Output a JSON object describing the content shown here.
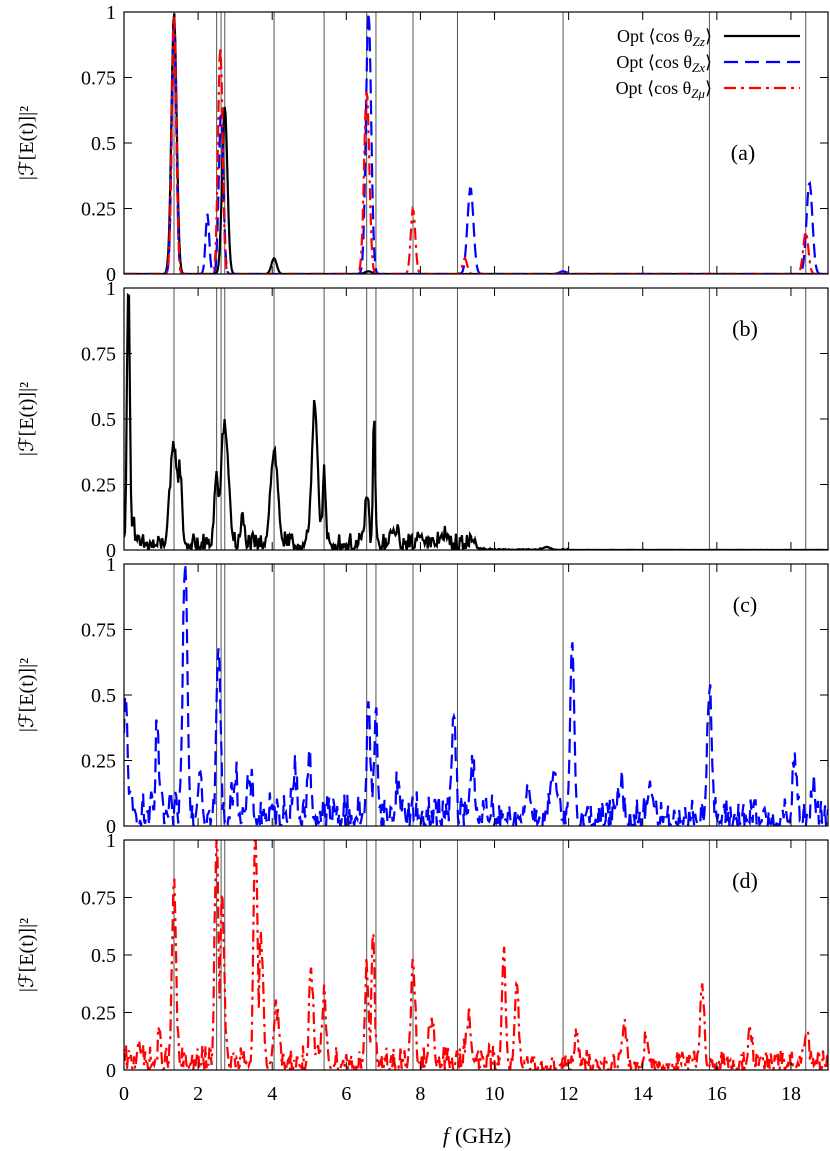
{
  "chart_data": {
    "type": "line",
    "xlabel": "f (GHz)",
    "xlabel_var": "f",
    "xlabel_unit": "(GHz)",
    "xlim": [
      0,
      19
    ],
    "x_ticks": [
      "0",
      "2",
      "4",
      "6",
      "8",
      "10",
      "12",
      "14",
      "16",
      "18"
    ],
    "y_ticks": [
      "0",
      "0.25",
      "0.5",
      "0.75",
      "1"
    ],
    "ylim": [
      0,
      1
    ],
    "ylabel": "|ℱ[E(t)]|²",
    "reference_lines_ghz": [
      1.35,
      2.5,
      2.62,
      2.72,
      4.05,
      5.4,
      6.55,
      6.8,
      7.8,
      9.0,
      11.85,
      15.8,
      18.4
    ],
    "legend": {
      "placement": "top-right",
      "entries": [
        {
          "label": "Opt ⟨cos θ",
          "sub": "Zz",
          "tail": "⟩",
          "color": "#000000",
          "dash": "solid"
        },
        {
          "label": "Opt ⟨cos θ",
          "sub": "Zx",
          "tail": "⟩",
          "color": "#0000ff",
          "dash": "dash"
        },
        {
          "label": "Opt ⟨cos θ",
          "sub": "Zμ",
          "tail": "⟩",
          "color": "#ff0000",
          "dash": "dashdot"
        }
      ]
    },
    "panels": [
      {
        "label": "(a)",
        "series": [
          {
            "color": "#000000",
            "dash": "solid",
            "peaks": [
              [
                1.35,
                1.0,
                0.07
              ],
              [
                2.72,
                0.64,
                0.07
              ],
              [
                4.05,
                0.06,
                0.07
              ],
              [
                6.6,
                0.01,
                0.1
              ]
            ]
          },
          {
            "color": "#0000ff",
            "dash": "dash",
            "peaks": [
              [
                1.35,
                0.98,
                0.06
              ],
              [
                2.25,
                0.23,
                0.05
              ],
              [
                2.62,
                0.62,
                0.06
              ],
              [
                6.6,
                1.0,
                0.07
              ],
              [
                9.35,
                0.33,
                0.08
              ],
              [
                18.5,
                0.35,
                0.08
              ],
              [
                11.85,
                0.01,
                0.1
              ]
            ]
          },
          {
            "color": "#ff0000",
            "dash": "dashdot",
            "peaks": [
              [
                1.35,
                0.99,
                0.06
              ],
              [
                2.6,
                0.87,
                0.06
              ],
              [
                6.55,
                0.7,
                0.07
              ],
              [
                7.8,
                0.25,
                0.06
              ],
              [
                9.2,
                0.06,
                0.06
              ],
              [
                18.4,
                0.16,
                0.07
              ]
            ]
          }
        ]
      },
      {
        "label": "(b)",
        "series": [
          {
            "color": "#000000",
            "dash": "solid",
            "peaks": [
              [
                0.12,
                1.0,
                0.04
              ],
              [
                0.25,
                0.12,
                0.03
              ],
              [
                1.35,
                0.38,
                0.1
              ],
              [
                1.5,
                0.3,
                0.06
              ],
              [
                2.5,
                0.27,
                0.06
              ],
              [
                2.72,
                0.46,
                0.1
              ],
              [
                3.2,
                0.1,
                0.05
              ],
              [
                4.05,
                0.36,
                0.1
              ],
              [
                5.15,
                0.53,
                0.08
              ],
              [
                5.4,
                0.29,
                0.04
              ],
              [
                6.55,
                0.2,
                0.05
              ],
              [
                6.75,
                0.5,
                0.03
              ],
              [
                7.3,
                0.06,
                0.08
              ],
              [
                8.0,
                0.05,
                0.08
              ],
              [
                8.6,
                0.04,
                0.1
              ],
              [
                9.4,
                0.02,
                0.1
              ],
              [
                11.4,
                0.01,
                0.1
              ]
            ],
            "noise": 0.03
          }
        ]
      },
      {
        "label": "(c)",
        "series": [
          {
            "color": "#0000ff",
            "dash": "dash",
            "peaks": [
              [
                0.05,
                0.45,
                0.05
              ],
              [
                0.9,
                0.38,
                0.04
              ],
              [
                1.65,
                1.0,
                0.06
              ],
              [
                2.05,
                0.2,
                0.05
              ],
              [
                2.55,
                0.67,
                0.05
              ],
              [
                3.0,
                0.15,
                0.06
              ],
              [
                3.4,
                0.12,
                0.06
              ],
              [
                4.6,
                0.15,
                0.06
              ],
              [
                5.0,
                0.21,
                0.05
              ],
              [
                6.6,
                0.4,
                0.05
              ],
              [
                6.8,
                0.46,
                0.04
              ],
              [
                7.4,
                0.12,
                0.06
              ],
              [
                8.9,
                0.4,
                0.05
              ],
              [
                9.4,
                0.18,
                0.07
              ],
              [
                10.9,
                0.12,
                0.08
              ],
              [
                11.6,
                0.16,
                0.1
              ],
              [
                12.1,
                0.69,
                0.05
              ],
              [
                13.4,
                0.14,
                0.06
              ],
              [
                14.2,
                0.14,
                0.07
              ],
              [
                15.8,
                0.51,
                0.06
              ],
              [
                18.1,
                0.24,
                0.05
              ],
              [
                18.6,
                0.12,
                0.05
              ]
            ],
            "noise": 0.06
          }
        ]
      },
      {
        "label": "(d)",
        "series": [
          {
            "color": "#ff0000",
            "dash": "dashdot",
            "peaks": [
              [
                0.4,
                0.12,
                0.04
              ],
              [
                0.95,
                0.1,
                0.04
              ],
              [
                1.35,
                0.82,
                0.05
              ],
              [
                2.5,
                1.0,
                0.05
              ],
              [
                2.65,
                0.75,
                0.05
              ],
              [
                3.55,
                0.98,
                0.05
              ],
              [
                3.7,
                0.55,
                0.05
              ],
              [
                4.1,
                0.23,
                0.07
              ],
              [
                5.05,
                0.38,
                0.05
              ],
              [
                5.4,
                0.27,
                0.06
              ],
              [
                6.55,
                0.4,
                0.05
              ],
              [
                6.72,
                0.52,
                0.04
              ],
              [
                7.8,
                0.44,
                0.05
              ],
              [
                8.3,
                0.2,
                0.06
              ],
              [
                9.3,
                0.2,
                0.07
              ],
              [
                10.25,
                0.49,
                0.05
              ],
              [
                10.6,
                0.35,
                0.05
              ],
              [
                12.2,
                0.12,
                0.05
              ],
              [
                13.5,
                0.18,
                0.05
              ],
              [
                14.1,
                0.14,
                0.05
              ],
              [
                15.6,
                0.38,
                0.05
              ],
              [
                16.9,
                0.16,
                0.05
              ],
              [
                18.4,
                0.12,
                0.07
              ]
            ],
            "noise": 0.05
          }
        ]
      }
    ]
  }
}
